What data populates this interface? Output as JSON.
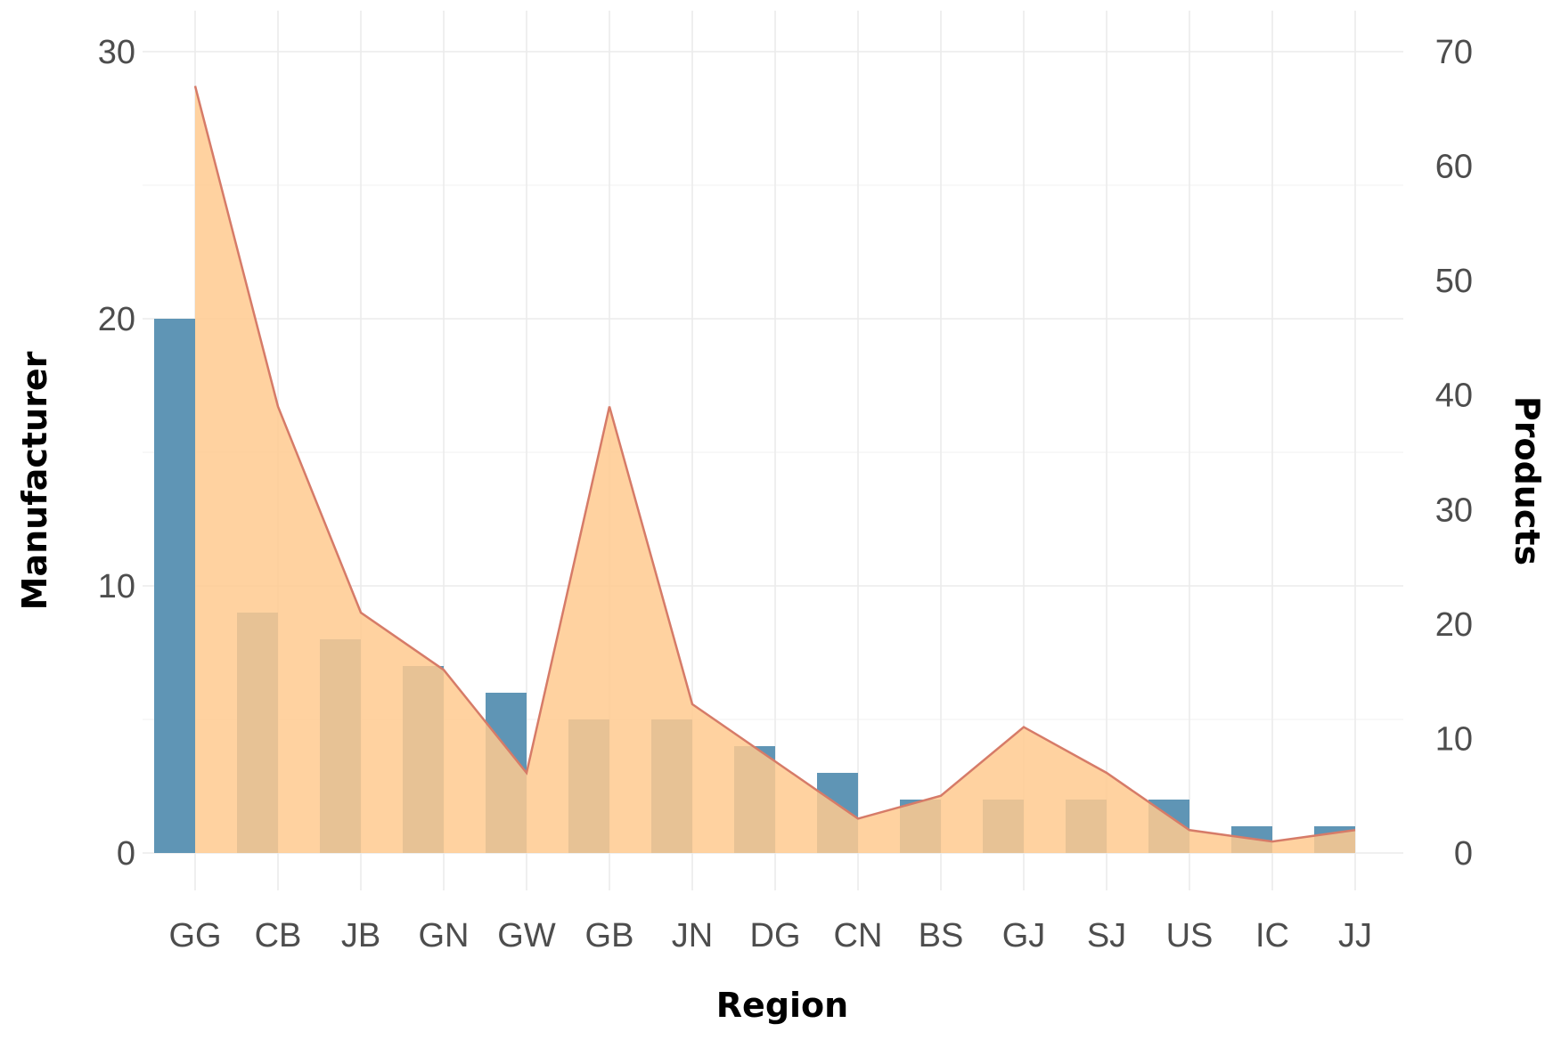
{
  "chart_data": {
    "type": "bar",
    "xlabel": "Region",
    "ylabel": "Manufacturer",
    "y2label": "Products",
    "categories": [
      "GG",
      "CB",
      "JB",
      "GN",
      "GW",
      "GB",
      "JN",
      "DG",
      "CN",
      "BS",
      "GJ",
      "SJ",
      "US",
      "IC",
      "JJ"
    ],
    "series": [
      {
        "axis": "left",
        "type": "bar",
        "values": [
          20,
          9,
          8,
          7,
          6,
          5,
          5,
          4,
          3,
          2,
          2,
          2,
          2,
          1,
          1
        ]
      },
      {
        "axis": "right",
        "type": "area",
        "values": [
          67,
          39,
          21,
          16,
          7,
          39,
          13,
          8,
          3,
          5,
          11,
          7,
          2,
          1,
          2
        ]
      }
    ],
    "ylim": [
      0,
      30
    ],
    "yticks": [
      "0",
      "10",
      "20",
      "30"
    ],
    "y2lim": [
      0,
      70
    ],
    "y2ticks": [
      "0",
      "10",
      "20",
      "30",
      "40",
      "50",
      "60",
      "70"
    ],
    "grid": true,
    "legend": "none",
    "colors": {
      "bar": "#5f95b5",
      "area": "#ffca8f",
      "line": "#d67b68",
      "overlap": "#a08f67"
    }
  }
}
